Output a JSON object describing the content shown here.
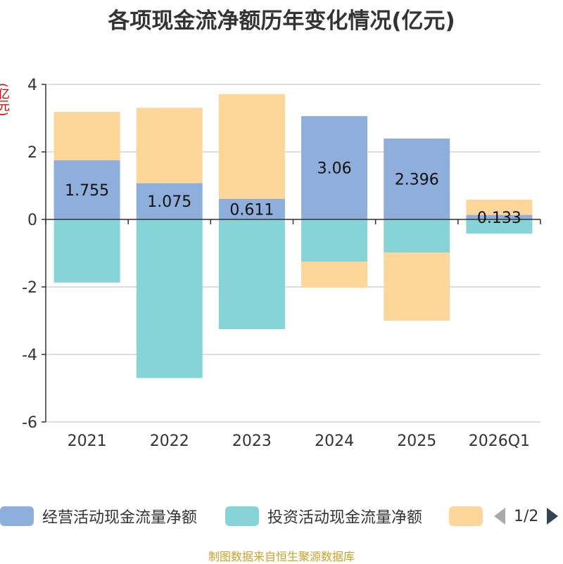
{
  "chart_data": {
    "type": "bar",
    "stacked": true,
    "title": "各项现金流净额历年变化情况(亿元)",
    "ylabel": "(亿元)",
    "ylim": [
      -6,
      4
    ],
    "yticks": [
      4,
      2,
      0,
      -2,
      -4,
      -6
    ],
    "grid": true,
    "categories": [
      "2021",
      "2022",
      "2023",
      "2024",
      "2025",
      "2026Q1"
    ],
    "series": [
      {
        "name": "经营活动现金流量净额",
        "color": "#8eaedb",
        "values": [
          1.755,
          1.075,
          0.611,
          3.06,
          2.396,
          0.133
        ],
        "labels": [
          "1.755",
          "1.075",
          "0.611",
          "3.06",
          "2.396",
          "0.133"
        ]
      },
      {
        "name": "投资活动现金流量净额",
        "color": "#86d4d8",
        "values": [
          -1.87,
          -4.7,
          -3.25,
          -1.25,
          -0.98,
          -0.42
        ]
      },
      {
        "name": "",
        "color": "#fdd799",
        "values": [
          1.43,
          2.23,
          3.1,
          -0.77,
          -2.02,
          0.45
        ]
      }
    ]
  },
  "legend": {
    "items": [
      {
        "label": "经营活动现金流量净额",
        "color": "#8eaedb"
      },
      {
        "label": "投资活动现金流量净额",
        "color": "#86d4d8"
      },
      {
        "label": "",
        "color": "#fdd799"
      }
    ],
    "page": "1/2"
  },
  "source": "制图数据来自恒生聚源数据库"
}
